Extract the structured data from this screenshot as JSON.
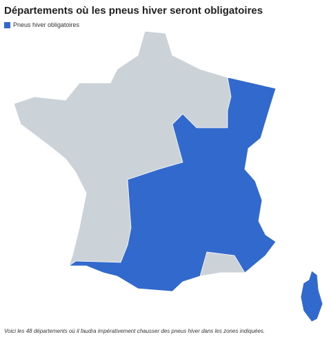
{
  "title": "Départements où les pneus hiver seront obligatoires",
  "legend": {
    "label": "Pneus hiver obligatoires",
    "color": "#3169cc"
  },
  "map": {
    "base_color": "#ccd3d8"
  },
  "caption": "Voici les 48 départements où il faudra impérativement chausser des pneus hiver dans les zones indiquées."
}
